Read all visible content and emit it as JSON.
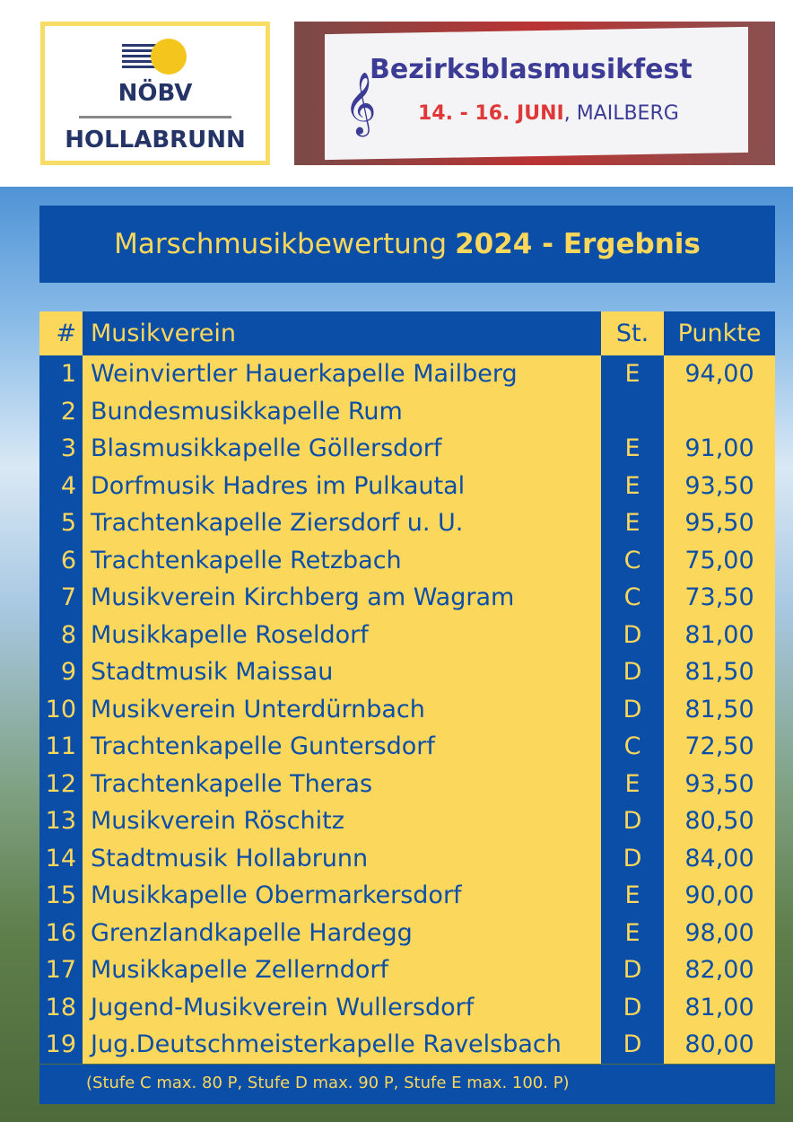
{
  "logo": {
    "line1": "NÖBV",
    "line2": "HOLLABRUNN"
  },
  "banner": {
    "title": "Bezirksblasmusikfest",
    "date": "14. - 16. JUNI",
    "place": ", MAILBERG"
  },
  "heading": {
    "text": "Marschmusikbewertung",
    "bold": "2024 - Ergebnis"
  },
  "table": {
    "headers": [
      "#",
      "Musikverein",
      "St.",
      "Punkte"
    ],
    "rows": [
      [
        "1",
        "Weinviertler Hauerkapelle Mailberg",
        "E",
        "94,00"
      ],
      [
        "2",
        "Bundesmusikkapelle Rum",
        "",
        ""
      ],
      [
        "3",
        "Blasmusikkapelle Göllersdorf",
        "E",
        "91,00"
      ],
      [
        "4",
        "Dorfmusik Hadres im Pulkautal",
        "E",
        "93,50"
      ],
      [
        "5",
        "Trachtenkapelle Ziersdorf u. U.",
        "E",
        "95,50"
      ],
      [
        "6",
        "Trachtenkapelle Retzbach",
        "C",
        "75,00"
      ],
      [
        "7",
        "Musikverein Kirchberg am Wagram",
        "C",
        "73,50"
      ],
      [
        "8",
        "Musikkapelle Roseldorf",
        "D",
        "81,00"
      ],
      [
        "9",
        "Stadtmusik Maissau",
        "D",
        "81,50"
      ],
      [
        "10",
        "Musikverein Unterdürnbach",
        "D",
        "81,50"
      ],
      [
        "11",
        "Trachtenkapelle Guntersdorf",
        "C",
        "72,50"
      ],
      [
        "12",
        "Trachtenkapelle Theras",
        "E",
        "93,50"
      ],
      [
        "13",
        "Musikverein Röschitz",
        "D",
        "80,50"
      ],
      [
        "14",
        "Stadtmusik Hollabrunn",
        "D",
        "84,00"
      ],
      [
        "15",
        "Musikkapelle Obermarkersdorf",
        "E",
        "90,00"
      ],
      [
        "16",
        "Grenzlandkapelle Hardegg",
        "E",
        "98,00"
      ],
      [
        "17",
        "Musikkapelle Zellerndorf",
        "D",
        "82,00"
      ],
      [
        "18",
        "Jugend-Musikverein Wullersdorf",
        "D",
        "81,00"
      ],
      [
        "19",
        "Jug.Deutschmeisterkapelle Ravelsbach",
        "D",
        "80,00"
      ]
    ]
  },
  "footnote": "(Stufe C max. 80 P, Stufe D max. 90 P, Stufe E max. 100. P)",
  "colors": {
    "blue": "#0b4ea8",
    "yellow": "#fbd75b"
  }
}
